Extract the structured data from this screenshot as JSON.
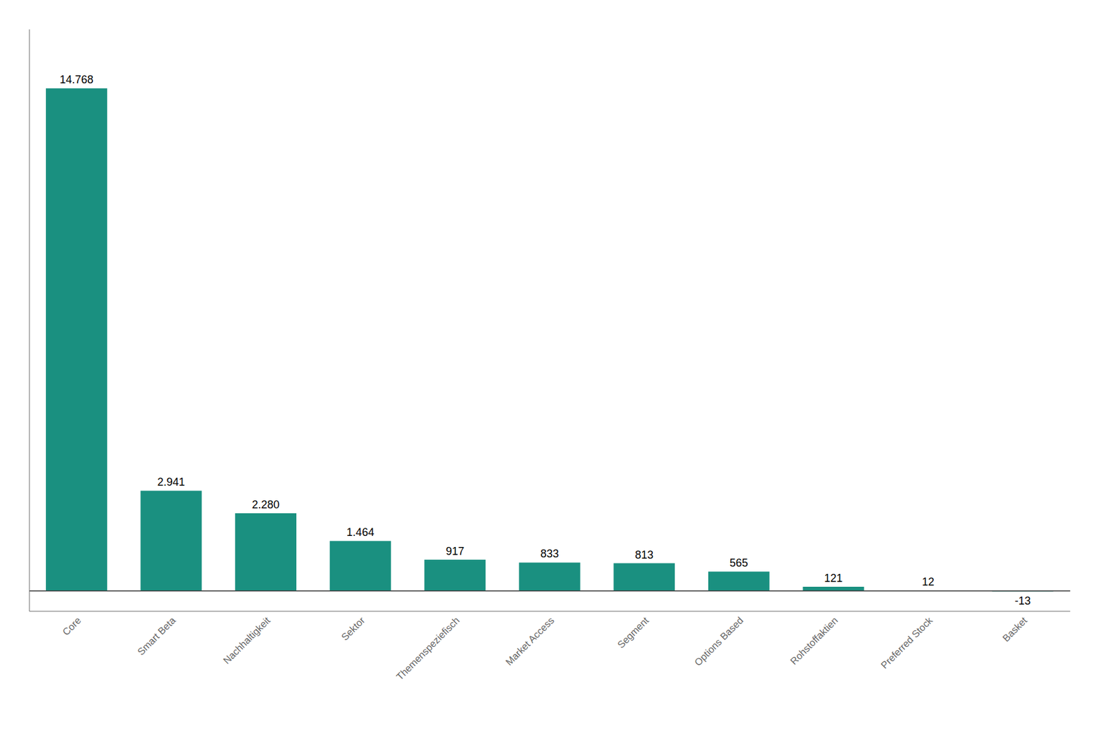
{
  "chart_data": {
    "type": "bar",
    "categories": [
      "Core",
      "Smart Beta",
      "Nachhaltigkeit",
      "Sektor",
      "Themenspeziefisch",
      "Market Access",
      "Segment",
      "Options Based",
      "Rohstoffaktien",
      "Preferred Stock",
      "Basket"
    ],
    "values": [
      14768,
      2941,
      2280,
      1464,
      917,
      833,
      813,
      565,
      121,
      12,
      -13
    ],
    "value_labels": [
      "14.768",
      "2.941",
      "2.280",
      "1.464",
      "917",
      "833",
      "813",
      "565",
      "121",
      "12",
      "-13"
    ],
    "color": "#1a9080",
    "ylim": [
      -600,
      16500
    ],
    "grid": false,
    "data_labels": true,
    "tick_labels": "x"
  }
}
